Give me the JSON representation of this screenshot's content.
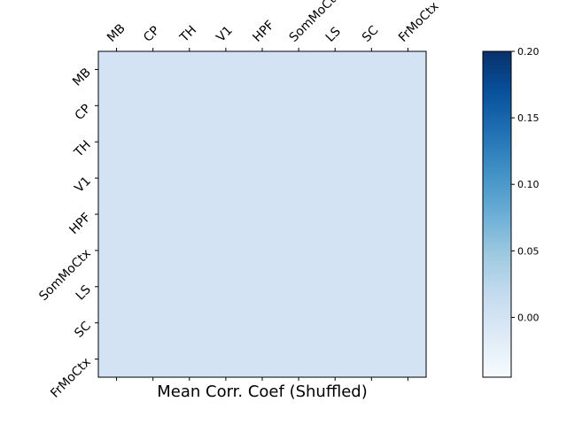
{
  "chart_data": {
    "type": "heatmap",
    "title": "",
    "xlabel": "Mean Corr. Coef (Shuffled)",
    "ylabel": "",
    "x_categories": [
      "MB",
      "CP",
      "TH",
      "V1",
      "HPF",
      "SomMoCtx",
      "LS",
      "SC",
      "FrMoCtx"
    ],
    "y_categories": [
      "MB",
      "CP",
      "TH",
      "V1",
      "HPF",
      "SomMoCtx",
      "LS",
      "SC",
      "FrMoCtx"
    ],
    "values": [
      [
        0.0,
        0.0,
        0.0,
        0.0,
        0.0,
        0.0,
        0.0,
        0.0,
        0.0
      ],
      [
        0.0,
        0.0,
        0.0,
        0.0,
        0.0,
        0.0,
        0.0,
        0.0,
        0.0
      ],
      [
        0.0,
        0.0,
        0.0,
        0.0,
        0.0,
        0.0,
        0.0,
        0.0,
        0.0
      ],
      [
        0.0,
        0.0,
        0.0,
        0.0,
        0.0,
        0.0,
        0.0,
        0.0,
        0.0
      ],
      [
        0.0,
        0.0,
        0.0,
        0.0,
        0.0,
        0.0,
        0.0,
        0.0,
        0.0
      ],
      [
        0.0,
        0.0,
        0.0,
        0.0,
        0.0,
        0.0,
        0.0,
        0.0,
        0.0
      ],
      [
        0.0,
        0.0,
        0.0,
        0.0,
        0.0,
        0.0,
        0.0,
        0.0,
        0.0
      ],
      [
        0.0,
        0.0,
        0.0,
        0.0,
        0.0,
        0.0,
        0.0,
        0.0,
        0.0
      ],
      [
        0.0,
        0.0,
        0.0,
        0.0,
        0.0,
        0.0,
        0.0,
        0.0,
        0.0
      ]
    ],
    "colorbar": {
      "colormap": "Blues",
      "vmin": -0.045,
      "vmax": 0.2,
      "ticks": [
        0.0,
        0.05,
        0.1,
        0.15,
        0.2
      ],
      "tick_labels": [
        "0.00",
        "0.05",
        "0.10",
        "0.15",
        "0.20"
      ]
    },
    "grid": false,
    "x_tick_position": "top"
  }
}
